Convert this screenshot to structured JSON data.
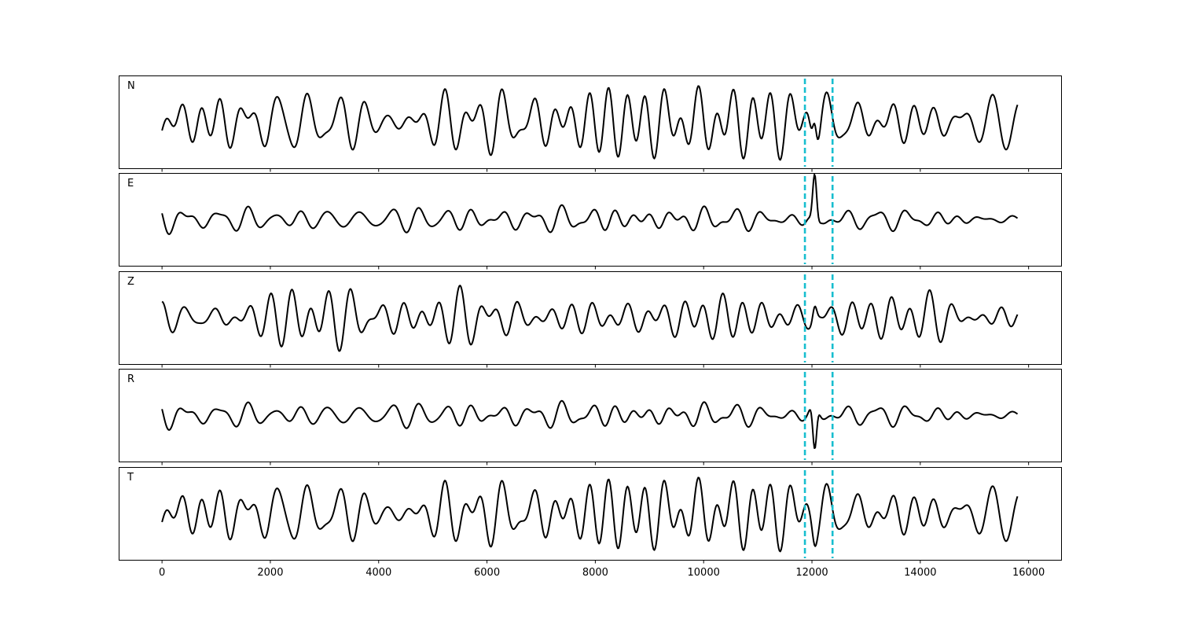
{
  "chart_data": {
    "type": "line",
    "xlim": [
      -800,
      16600
    ],
    "x_ticks": [
      0,
      2000,
      4000,
      6000,
      8000,
      10000,
      12000,
      14000,
      16000
    ],
    "x_tick_labels": [
      "0",
      "2000",
      "4000",
      "6000",
      "8000",
      "10000",
      "12000",
      "14000",
      "16000"
    ],
    "x_range": [
      0,
      15800
    ],
    "sample_step": 15,
    "line_color": "#000000",
    "marker_color": "#17becf",
    "markers": [
      11870,
      12380
    ],
    "grid": false,
    "shared_x": true,
    "panels": [
      {
        "label": "N",
        "amplitude": 0.82,
        "seed": 11,
        "arrival": 12050,
        "arrival_amp": 0.5,
        "ylim": [
          -1.0,
          1.0
        ]
      },
      {
        "label": "E",
        "amplitude": 0.32,
        "seed": 23,
        "arrival": 12050,
        "arrival_amp": 0.85,
        "ylim": [
          -1.0,
          1.0
        ]
      },
      {
        "label": "Z",
        "amplitude": 0.72,
        "seed": 37,
        "arrival": 12050,
        "arrival_amp": 0.25,
        "ylim": [
          -1.0,
          1.0
        ]
      },
      {
        "label": "R",
        "amplitude": 0.32,
        "seed": 23,
        "arrival": 12050,
        "arrival_amp": -0.85,
        "ylim": [
          -1.0,
          1.0
        ]
      },
      {
        "label": "T",
        "amplitude": 0.82,
        "seed": 11,
        "arrival": 12050,
        "arrival_amp": -0.15,
        "ylim": [
          -1.0,
          1.0
        ]
      }
    ]
  }
}
